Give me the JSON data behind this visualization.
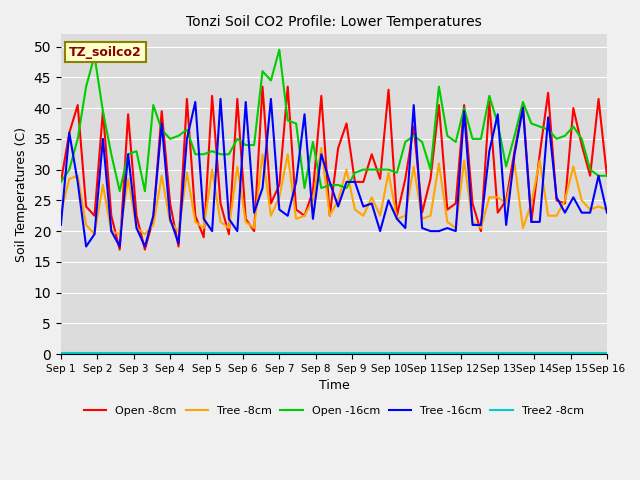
{
  "title": "Tonzi Soil CO2 Profile: Lower Temperatures",
  "xlabel": "Time",
  "ylabel": "Soil Temperatures (C)",
  "ylim": [
    0,
    52
  ],
  "yticks": [
    0,
    5,
    10,
    15,
    20,
    25,
    30,
    35,
    40,
    45,
    50
  ],
  "x_labels": [
    "Sep 1",
    "Sep 2",
    "Sep 3",
    "Sep 4",
    "Sep 5",
    "Sep 6",
    "Sep 7",
    "Sep 8",
    "Sep 9",
    "Sep 10",
    "Sep 11",
    "Sep 12",
    "Sep 13",
    "Sep 14",
    "Sep 15",
    "Sep 16"
  ],
  "annotation_text": "TZ_soilco2",
  "annotation_color": "#8B0000",
  "annotation_bg": "#FFFFCC",
  "annotation_border": "#8B8000",
  "plot_bg": "#DCDCDC",
  "fig_bg": "#F0F0F0",
  "series": {
    "open_8cm": {
      "label": "Open -8cm",
      "color": "#FF0000",
      "lw": 1.5,
      "values": [
        28.0,
        36.0,
        40.5,
        24.0,
        22.5,
        39.5,
        22.5,
        17.0,
        39.0,
        22.5,
        17.0,
        22.0,
        39.5,
        24.5,
        17.5,
        41.5,
        22.5,
        19.0,
        42.0,
        24.5,
        19.5,
        41.5,
        22.0,
        20.0,
        43.5,
        24.5,
        27.5,
        43.5,
        23.5,
        22.5,
        26.5,
        42.0,
        22.5,
        33.5,
        37.5,
        28.0,
        28.0,
        32.5,
        28.5,
        43.0,
        22.5,
        28.5,
        37.0,
        23.0,
        28.5,
        40.5,
        23.5,
        24.5,
        40.5,
        24.5,
        20.0,
        41.0,
        23.0,
        25.0,
        33.0,
        40.5,
        21.5,
        32.5,
        42.5,
        25.0,
        24.5,
        40.0,
        34.0,
        29.0,
        41.5,
        29.0
      ]
    },
    "tree_8cm": {
      "label": "Tree -8cm",
      "color": "#FFA500",
      "lw": 1.5,
      "values": [
        23.0,
        28.5,
        29.0,
        21.0,
        19.5,
        27.5,
        20.0,
        19.5,
        28.5,
        20.5,
        19.5,
        21.0,
        29.0,
        21.5,
        20.0,
        29.5,
        21.5,
        20.5,
        30.0,
        21.5,
        20.5,
        30.5,
        21.5,
        20.5,
        32.5,
        22.5,
        25.5,
        32.5,
        22.0,
        22.5,
        25.0,
        33.5,
        22.5,
        25.0,
        30.0,
        23.5,
        22.5,
        25.5,
        22.5,
        29.5,
        22.0,
        22.5,
        30.5,
        22.0,
        22.5,
        31.0,
        21.5,
        20.5,
        31.5,
        21.5,
        20.5,
        25.5,
        25.5,
        24.5,
        31.0,
        20.5,
        24.5,
        31.5,
        22.5,
        22.5,
        25.0,
        30.5,
        25.0,
        23.5,
        24.0,
        23.5
      ]
    },
    "open_16cm": {
      "label": "Open -16cm",
      "color": "#00CC00",
      "lw": 1.5,
      "values": [
        28.0,
        30.0,
        35.0,
        43.5,
        48.5,
        39.5,
        32.5,
        26.5,
        32.5,
        33.0,
        26.5,
        40.5,
        36.5,
        35.0,
        35.5,
        36.5,
        32.5,
        32.5,
        33.0,
        32.5,
        32.5,
        35.0,
        34.0,
        34.0,
        46.0,
        44.5,
        49.5,
        38.0,
        37.5,
        27.0,
        34.5,
        27.0,
        27.5,
        27.5,
        27.0,
        29.5,
        30.0,
        30.0,
        30.0,
        30.0,
        29.5,
        34.5,
        35.5,
        34.5,
        30.0,
        43.5,
        35.5,
        34.5,
        40.0,
        35.0,
        35.0,
        42.0,
        37.5,
        30.5,
        35.5,
        41.0,
        37.5,
        37.0,
        36.5,
        35.0,
        35.5,
        37.0,
        35.0,
        30.0,
        29.0,
        29.0
      ]
    },
    "tree_16cm": {
      "label": "Tree -16cm",
      "color": "#0000FF",
      "lw": 1.5,
      "values": [
        21.0,
        36.0,
        28.0,
        17.5,
        19.5,
        35.0,
        20.0,
        17.5,
        32.5,
        20.5,
        17.5,
        22.5,
        37.5,
        22.0,
        18.0,
        35.0,
        41.0,
        22.0,
        20.0,
        41.5,
        22.0,
        20.0,
        41.0,
        23.0,
        27.0,
        41.5,
        23.5,
        22.5,
        28.0,
        39.0,
        22.0,
        32.5,
        28.0,
        24.0,
        28.0,
        28.0,
        24.0,
        24.5,
        20.0,
        25.0,
        22.0,
        20.5,
        40.5,
        20.5,
        20.0,
        20.0,
        20.5,
        20.0,
        39.5,
        21.0,
        21.0,
        33.0,
        39.0,
        21.0,
        32.5,
        40.0,
        21.5,
        21.5,
        38.5,
        25.5,
        23.0,
        25.5,
        23.0,
        23.0,
        29.0,
        23.0
      ]
    },
    "tree2_8cm": {
      "label": "Tree2 -8cm",
      "color": "#00CCCC",
      "lw": 1.5,
      "values": [
        0.2,
        0.2,
        0.2,
        0.2,
        0.2,
        0.2,
        0.2,
        0.2,
        0.2,
        0.2,
        0.2,
        0.2,
        0.2,
        0.2,
        0.2,
        0.2,
        0.2,
        0.2,
        0.2,
        0.2,
        0.2,
        0.2,
        0.2,
        0.2,
        0.2,
        0.2,
        0.2,
        0.2,
        0.2,
        0.2,
        0.2,
        0.2,
        0.2,
        0.2,
        0.2,
        0.2,
        0.2,
        0.2,
        0.2,
        0.2,
        0.2,
        0.2,
        0.2,
        0.2,
        0.2,
        0.2,
        0.2,
        0.2,
        0.2,
        0.2,
        0.2,
        0.2,
        0.2,
        0.2,
        0.2,
        0.2,
        0.2,
        0.2,
        0.2,
        0.2,
        0.2,
        0.2,
        0.2,
        0.2,
        0.2,
        0.2
      ]
    }
  },
  "num_points": 66,
  "days": 15
}
